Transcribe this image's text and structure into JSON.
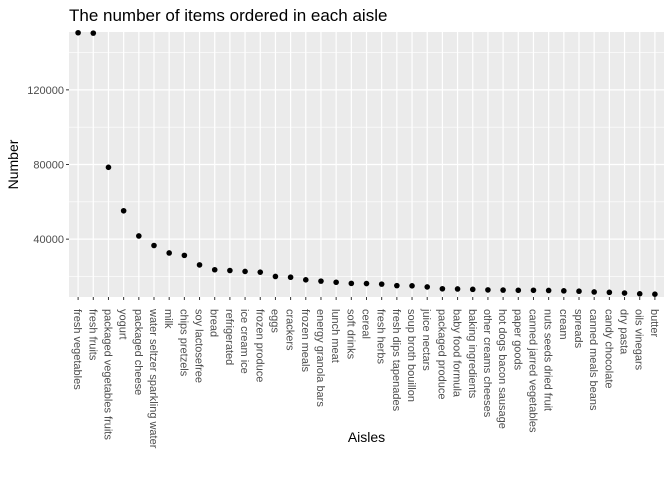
{
  "chart_data": {
    "type": "scatter",
    "title": "The number of items ordered in each aisle",
    "xlabel": "Aisles",
    "ylabel": "Number",
    "ylim": [
      9000,
      151000
    ],
    "yticks": [
      40000,
      80000,
      120000
    ],
    "ytick_labels": [
      "40000",
      "80000",
      "120000"
    ],
    "grid": true,
    "colors": {
      "panel": "#ebebeb",
      "grid": "#ffffff",
      "point": "#000000"
    },
    "categories": [
      "fresh vegetables",
      "fresh fruits",
      "packaged vegetables fruits",
      "yogurt",
      "packaged cheese",
      "water seltzer sparkling water",
      "milk",
      "chips pretzels",
      "soy lactosefree",
      "bread",
      "refrigerated",
      "ice cream ice",
      "frozen produce",
      "eggs",
      "crackers",
      "frozen meals",
      "energy granola bars",
      "lunch meat",
      "soft drinks",
      "cereal",
      "fresh herbs",
      "fresh dips tapenades",
      "soup broth bouillon",
      "juice nectars",
      "packaged produce",
      "baby food formula",
      "baking ingredients",
      "other creams cheeses",
      "hot dogs bacon sausage",
      "paper goods",
      "canned jarred vegetables",
      "nuts seeds dried fruit",
      "cream",
      "spreads",
      "canned meals beans",
      "candy chocolate",
      "dry pasta",
      "oils vinegars",
      "butter"
    ],
    "values": [
      150600,
      150400,
      78500,
      55200,
      41700,
      36600,
      32600,
      31300,
      26200,
      23600,
      23200,
      22700,
      22300,
      20000,
      19600,
      18200,
      17500,
      16900,
      16300,
      16200,
      15900,
      15100,
      15000,
      14400,
      13400,
      13300,
      13100,
      12800,
      12700,
      12600,
      12600,
      12500,
      12300,
      12100,
      11700,
      11500,
      11100,
      10700,
      10500
    ]
  }
}
